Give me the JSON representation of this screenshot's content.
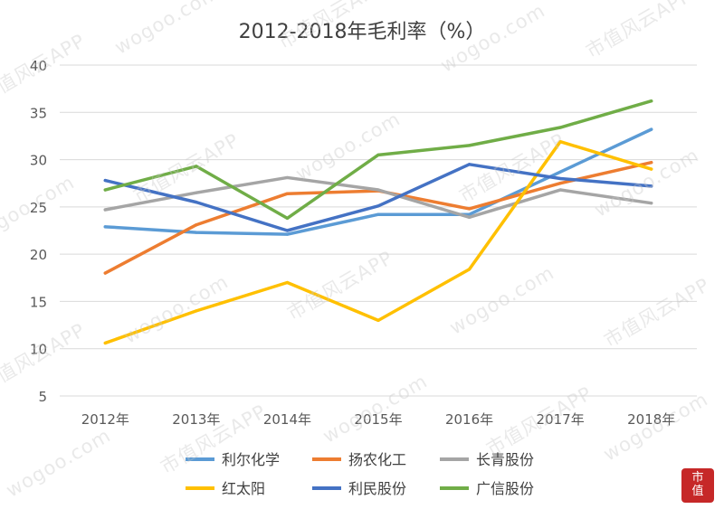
{
  "chart_data": {
    "type": "line",
    "title": "2012-2018年毛利率（%）",
    "xlabel": "",
    "ylabel": "",
    "categories": [
      "2012年",
      "2013年",
      "2014年",
      "2015年",
      "2016年",
      "2017年",
      "2018年"
    ],
    "ylim": [
      5,
      40
    ],
    "yticks": [
      5,
      10,
      15,
      20,
      25,
      30,
      35,
      40
    ],
    "grid": true,
    "legend": "bottom",
    "series": [
      {
        "name": "利尔化学",
        "color": "#5b9bd5",
        "values": [
          22.9,
          22.3,
          22.1,
          24.2,
          24.2,
          28.7,
          33.2
        ]
      },
      {
        "name": "扬农化工",
        "color": "#ed7d31",
        "values": [
          18.0,
          23.1,
          26.4,
          26.7,
          24.8,
          27.5,
          29.7
        ]
      },
      {
        "name": "长青股份",
        "color": "#a5a5a5",
        "values": [
          24.7,
          26.5,
          28.1,
          26.8,
          23.9,
          26.8,
          25.4
        ]
      },
      {
        "name": "红太阳",
        "color": "#ffc000",
        "values": [
          10.6,
          14.0,
          17.0,
          13.0,
          18.4,
          31.9,
          29.0
        ]
      },
      {
        "name": "利民股份",
        "color": "#4472c4",
        "values": [
          27.8,
          25.5,
          22.5,
          25.1,
          29.5,
          28.0,
          27.2
        ]
      },
      {
        "name": "广信股份",
        "color": "#70ad47",
        "values": [
          26.8,
          29.3,
          23.8,
          30.5,
          31.5,
          33.4,
          36.2
        ]
      }
    ]
  },
  "watermark": {
    "text": "市值风云APP",
    "text2": "wogoo.com"
  },
  "seal": {
    "line1": "市",
    "line2": "值"
  }
}
